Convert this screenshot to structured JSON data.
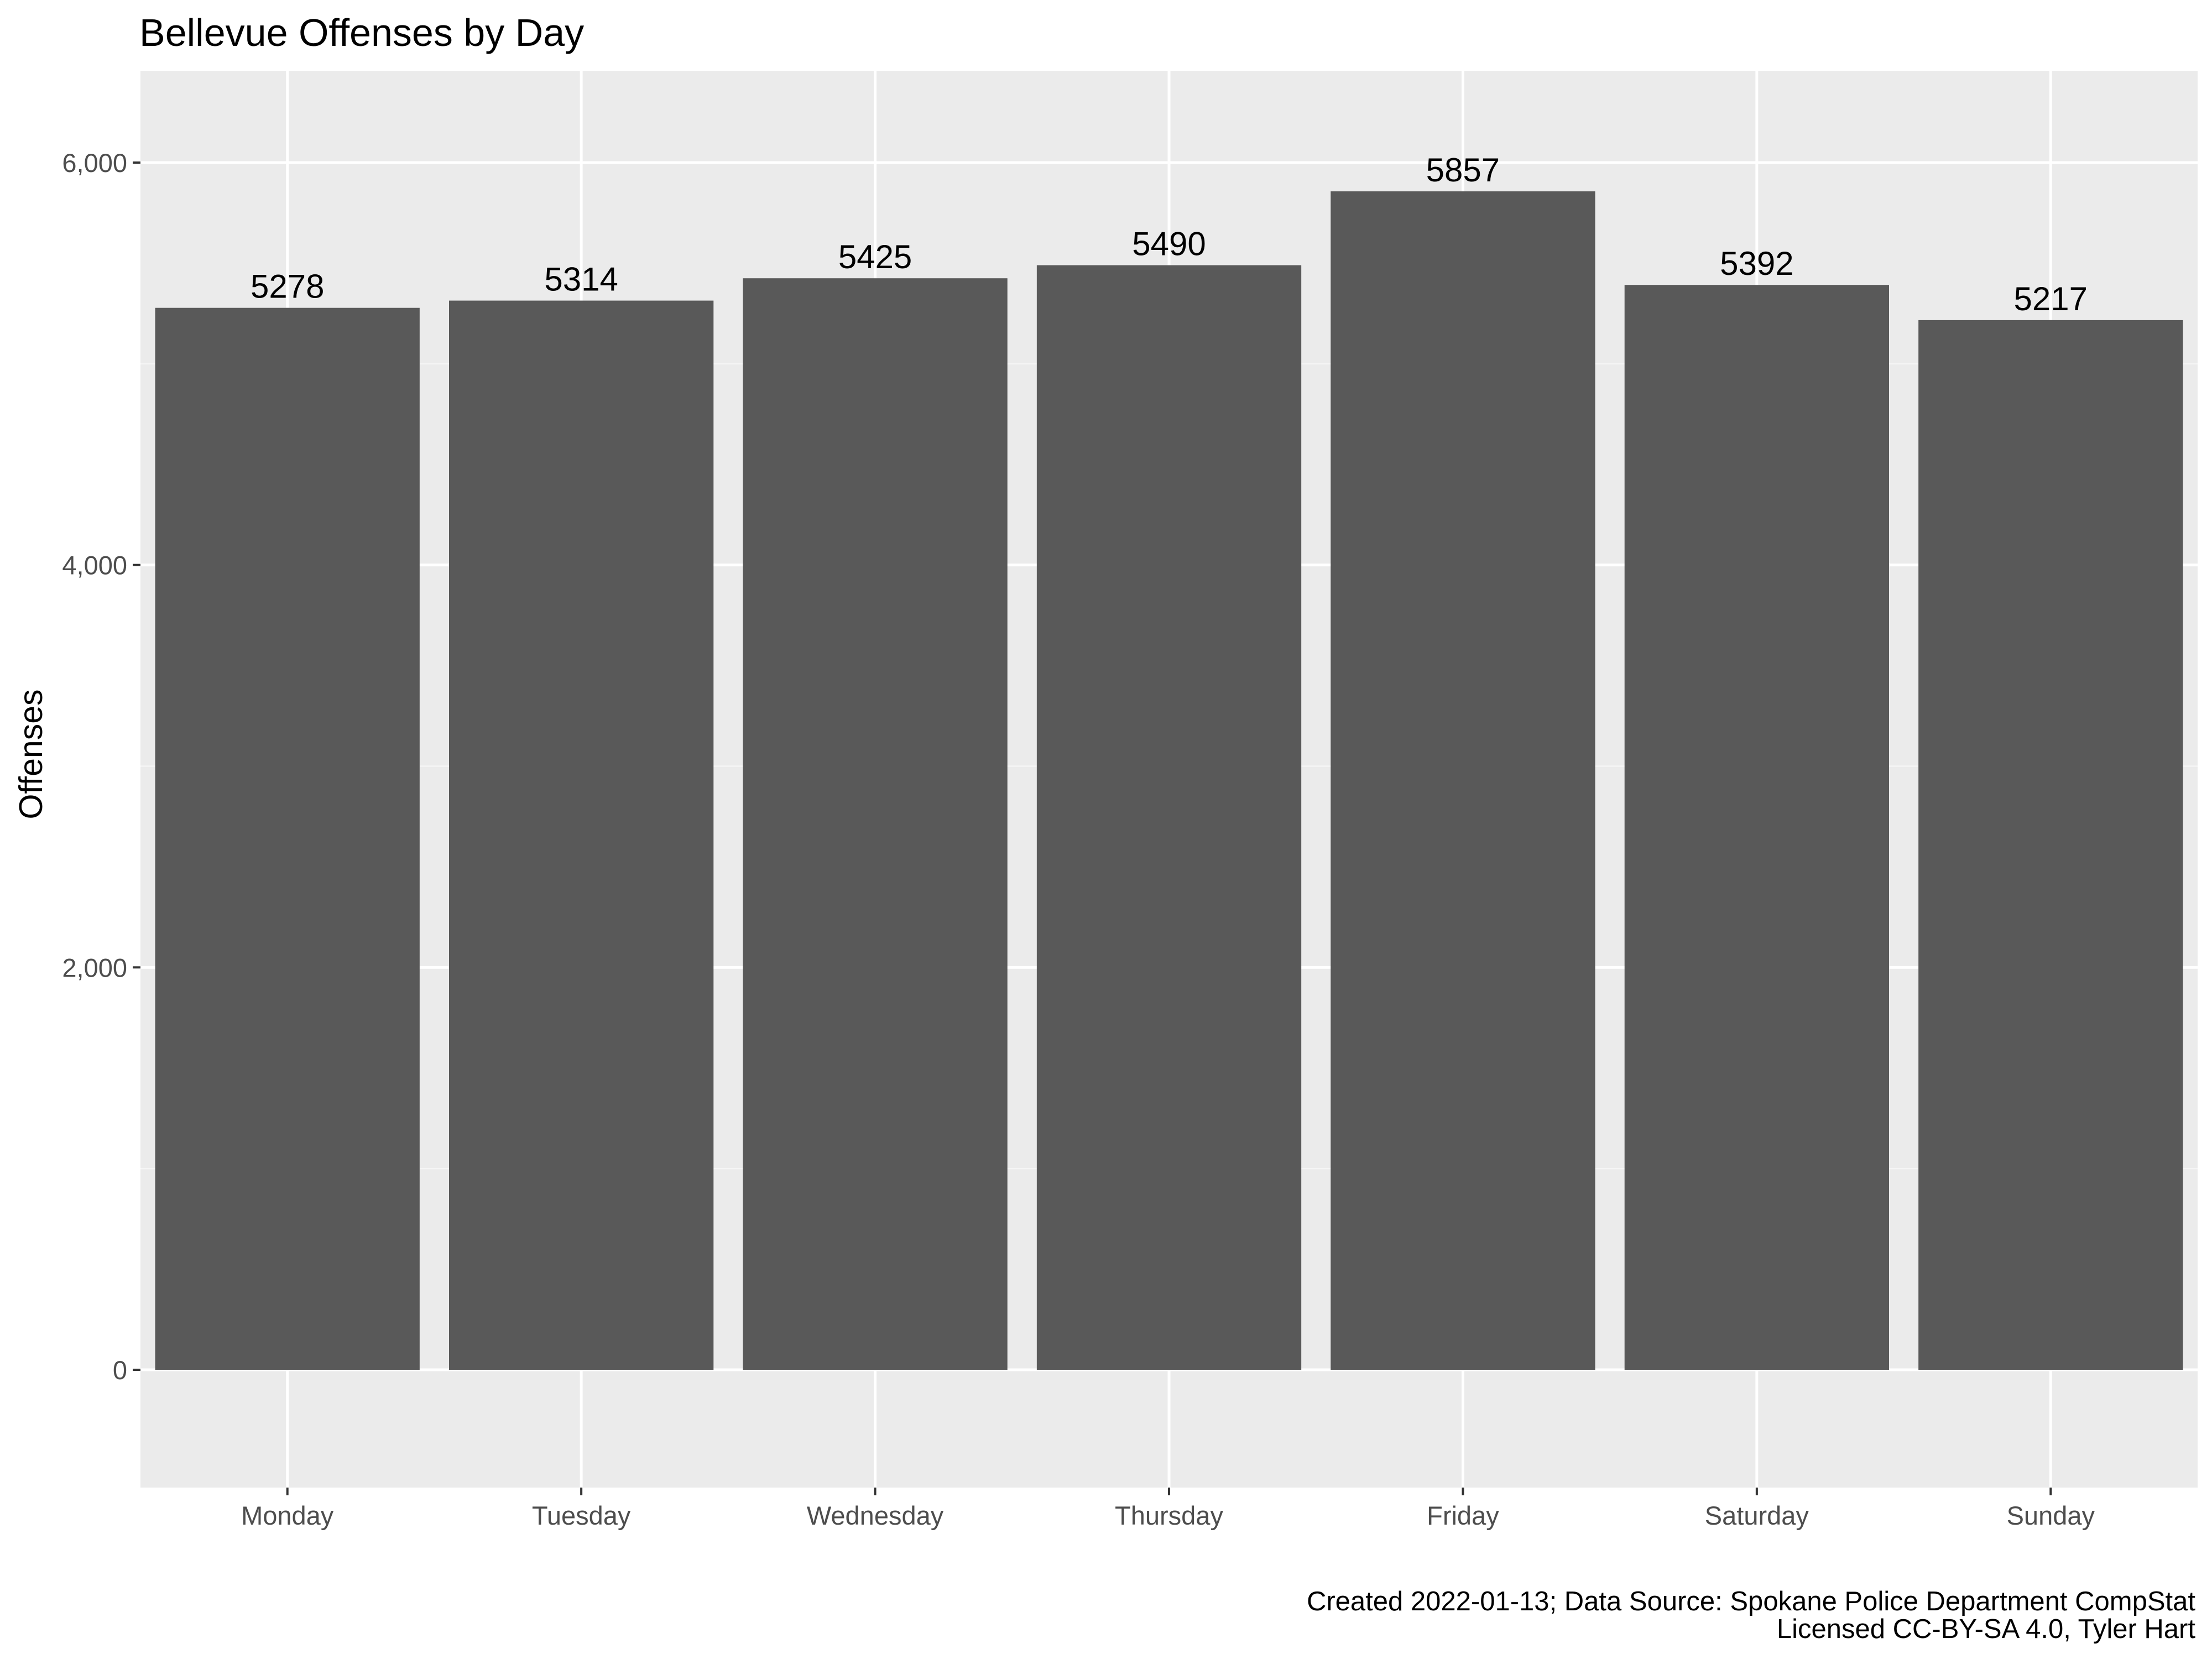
{
  "colors": {
    "panel_background": "#ebebeb",
    "grid_major": "#ffffff",
    "grid_minor": "#f5f5f5",
    "bar_fill": "#595959",
    "tick_text": "#4d4d4d",
    "text": "#000000"
  },
  "caption": {
    "line1": "Created 2022-01-13; Data Source: Spokane Police Department CompStat",
    "line2": "Licensed CC-BY-SA 4.0, Tyler Hart"
  },
  "chart_data": {
    "type": "bar",
    "title": "Bellevue Offenses by Day",
    "xlabel": "",
    "ylabel": "Offenses",
    "categories": [
      "Monday",
      "Tuesday",
      "Wednesday",
      "Thursday",
      "Friday",
      "Saturday",
      "Sunday"
    ],
    "values": [
      5278,
      5314,
      5425,
      5490,
      5857,
      5392,
      5217
    ],
    "data_labels": [
      "5278",
      "5314",
      "5425",
      "5490",
      "5857",
      "5392",
      "5217"
    ],
    "yticks": [
      0,
      2000,
      4000,
      6000
    ],
    "ytick_labels": [
      "0",
      "2,000",
      "4,000",
      "6,000"
    ],
    "ylim": [
      -580,
      6450
    ],
    "grid": true,
    "legend": "none"
  }
}
